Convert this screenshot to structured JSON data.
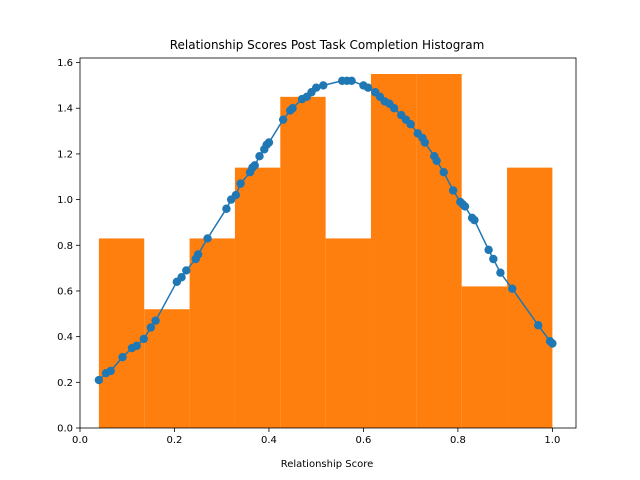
{
  "chart_data": {
    "type": "bar",
    "title": "Relationship Scores Post Task Completion Histogram",
    "xlabel": "Relationship Score",
    "ylabel": "",
    "xlim": [
      -0.0,
      1.05
    ],
    "ylim": [
      0,
      1.62
    ],
    "grid": false,
    "x_ticks": [
      "0.0",
      "0.2",
      "0.4",
      "0.6",
      "0.8",
      "1.0"
    ],
    "x_tick_values": [
      0.0,
      0.2,
      0.4,
      0.6,
      0.8,
      1.0
    ],
    "y_ticks": [
      "0.0",
      "0.2",
      "0.4",
      "0.6",
      "0.8",
      "1.0",
      "1.2",
      "1.4",
      "1.6"
    ],
    "y_tick_values": [
      0.0,
      0.2,
      0.4,
      0.6,
      0.8,
      1.0,
      1.2,
      1.4,
      1.6
    ],
    "histogram": {
      "color": "#ff7f0e",
      "bin_edges": [
        0.04,
        0.136,
        0.232,
        0.328,
        0.424,
        0.52,
        0.616,
        0.712,
        0.808,
        0.904,
        1.0
      ],
      "density": [
        0.83,
        0.52,
        0.83,
        1.14,
        1.45,
        0.83,
        1.55,
        1.55,
        0.62,
        1.14
      ]
    },
    "series": [
      {
        "type": "line",
        "color": "#1f77b4",
        "marker": "circle",
        "x": [
          0.04,
          0.055,
          0.065,
          0.09,
          0.11,
          0.12,
          0.135,
          0.15,
          0.16,
          0.205,
          0.215,
          0.225,
          0.245,
          0.25,
          0.27,
          0.31,
          0.32,
          0.33,
          0.34,
          0.36,
          0.365,
          0.37,
          0.38,
          0.39,
          0.395,
          0.4,
          0.43,
          0.445,
          0.45,
          0.47,
          0.48,
          0.49,
          0.5,
          0.515,
          0.555,
          0.565,
          0.575,
          0.6,
          0.61,
          0.625,
          0.635,
          0.645,
          0.655,
          0.665,
          0.68,
          0.69,
          0.7,
          0.715,
          0.725,
          0.73,
          0.75,
          0.755,
          0.77,
          0.79,
          0.805,
          0.81,
          0.815,
          0.83,
          0.835,
          0.865,
          0.875,
          0.89,
          0.915,
          0.97,
          0.995,
          1.0
        ],
        "y": [
          0.21,
          0.24,
          0.25,
          0.31,
          0.35,
          0.36,
          0.39,
          0.44,
          0.47,
          0.64,
          0.66,
          0.69,
          0.74,
          0.76,
          0.83,
          0.96,
          1.0,
          1.02,
          1.07,
          1.12,
          1.14,
          1.15,
          1.19,
          1.22,
          1.24,
          1.25,
          1.35,
          1.39,
          1.4,
          1.44,
          1.45,
          1.47,
          1.49,
          1.5,
          1.52,
          1.52,
          1.52,
          1.5,
          1.49,
          1.47,
          1.45,
          1.43,
          1.42,
          1.4,
          1.37,
          1.35,
          1.33,
          1.29,
          1.27,
          1.25,
          1.19,
          1.17,
          1.12,
          1.04,
          0.99,
          0.98,
          0.97,
          0.92,
          0.91,
          0.78,
          0.74,
          0.68,
          0.61,
          0.45,
          0.38,
          0.37
        ]
      }
    ]
  }
}
